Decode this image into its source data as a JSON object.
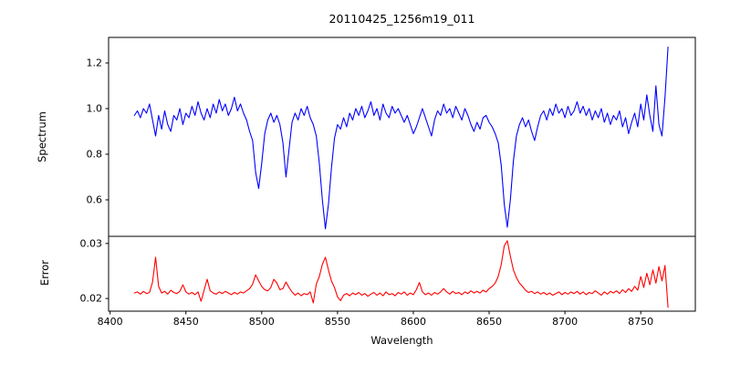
{
  "chart": {
    "title": "20110425_1256m19_011",
    "xlabel": "Wavelength",
    "background_color": "#ffffff",
    "spine_color": "#000000"
  },
  "chart_data": [
    {
      "type": "line",
      "name": "spectrum",
      "title": "20110425_1256m19_011",
      "ylabel": "Spectrum",
      "color": "#0000ff",
      "legend": null,
      "grid": false,
      "xlim": [
        8399,
        8786
      ],
      "ylim": [
        0.44,
        1.312
      ],
      "yticks": [
        0.6,
        0.8,
        1.0,
        1.2
      ],
      "ytick_labels": [
        "0.6",
        "0.8",
        "1.0",
        "1.2"
      ],
      "show_xtick_labels": false,
      "x_start": 8416,
      "x_step": 2,
      "y": [
        0.97,
        0.99,
        0.96,
        1.0,
        0.98,
        1.02,
        0.95,
        0.88,
        0.97,
        0.91,
        0.99,
        0.93,
        0.9,
        0.97,
        0.95,
        1.0,
        0.93,
        0.98,
        0.96,
        1.01,
        0.97,
        1.03,
        0.98,
        0.95,
        1.0,
        0.96,
        1.02,
        0.98,
        1.04,
        0.99,
        1.02,
        0.97,
        1.0,
        1.05,
        0.99,
        1.02,
        0.98,
        0.95,
        0.9,
        0.86,
        0.72,
        0.65,
        0.76,
        0.89,
        0.95,
        0.98,
        0.94,
        0.97,
        0.93,
        0.85,
        0.7,
        0.82,
        0.94,
        0.98,
        0.95,
        1.0,
        0.97,
        1.01,
        0.96,
        0.93,
        0.88,
        0.76,
        0.6,
        0.473,
        0.58,
        0.74,
        0.87,
        0.93,
        0.91,
        0.96,
        0.92,
        0.98,
        0.95,
        1.0,
        0.97,
        1.01,
        0.96,
        0.99,
        1.03,
        0.97,
        1.0,
        0.95,
        1.02,
        0.98,
        0.96,
        1.01,
        0.98,
        1.0,
        0.97,
        0.94,
        0.97,
        0.93,
        0.89,
        0.92,
        0.96,
        1.0,
        0.96,
        0.92,
        0.88,
        0.95,
        0.99,
        0.97,
        1.02,
        0.98,
        1.0,
        0.96,
        1.01,
        0.98,
        0.95,
        1.0,
        0.97,
        0.93,
        0.9,
        0.94,
        0.91,
        0.96,
        0.97,
        0.94,
        0.92,
        0.89,
        0.85,
        0.75,
        0.58,
        0.48,
        0.6,
        0.77,
        0.88,
        0.93,
        0.96,
        0.92,
        0.95,
        0.9,
        0.86,
        0.92,
        0.97,
        0.99,
        0.95,
        1.0,
        0.97,
        1.02,
        0.98,
        1.0,
        0.96,
        1.01,
        0.97,
        0.99,
        1.03,
        0.98,
        1.01,
        0.97,
        1.0,
        0.95,
        0.99,
        0.96,
        1.0,
        0.94,
        0.98,
        0.93,
        0.97,
        0.95,
        0.99,
        0.92,
        0.96,
        0.89,
        0.94,
        0.98,
        0.92,
        1.02,
        0.95,
        1.06,
        0.97,
        0.9,
        1.1,
        0.93,
        0.88,
        1.05,
        1.27
      ]
    },
    {
      "type": "line",
      "name": "error",
      "ylabel": "Error",
      "xlabel": "Wavelength",
      "color": "#ff0000",
      "legend": null,
      "grid": false,
      "xlim": [
        8399,
        8786
      ],
      "ylim": [
        0.0177,
        0.0313
      ],
      "yticks": [
        0.02,
        0.03
      ],
      "ytick_labels": [
        "0.02",
        "0.03"
      ],
      "xticks": [
        8400,
        8450,
        8500,
        8550,
        8600,
        8650,
        8700,
        8750
      ],
      "xtick_labels": [
        "8400",
        "8450",
        "8500",
        "8550",
        "8600",
        "8650",
        "8700",
        "8750"
      ],
      "show_xtick_labels": true,
      "x_start": 8416,
      "x_step": 2,
      "y": [
        0.021,
        0.0212,
        0.0208,
        0.0213,
        0.0209,
        0.0211,
        0.023,
        0.0275,
        0.0222,
        0.021,
        0.0213,
        0.0208,
        0.0215,
        0.0211,
        0.0209,
        0.0213,
        0.0225,
        0.0212,
        0.0208,
        0.0211,
        0.0207,
        0.0212,
        0.0195,
        0.0215,
        0.0235,
        0.0214,
        0.021,
        0.0208,
        0.0212,
        0.0209,
        0.0213,
        0.021,
        0.0207,
        0.0211,
        0.0208,
        0.0212,
        0.021,
        0.0214,
        0.0218,
        0.0226,
        0.0243,
        0.0232,
        0.0222,
        0.0216,
        0.0214,
        0.022,
        0.0235,
        0.0228,
        0.0216,
        0.0218,
        0.023,
        0.022,
        0.0212,
        0.0206,
        0.021,
        0.0205,
        0.0209,
        0.0207,
        0.0212,
        0.0192,
        0.0226,
        0.024,
        0.0262,
        0.0275,
        0.0252,
        0.0232,
        0.022,
        0.0203,
        0.0196,
        0.0206,
        0.0209,
        0.0205,
        0.021,
        0.0207,
        0.0211,
        0.0206,
        0.0209,
        0.0204,
        0.0208,
        0.0211,
        0.0206,
        0.021,
        0.0205,
        0.0212,
        0.0207,
        0.0209,
        0.0205,
        0.0211,
        0.0208,
        0.0212,
        0.0206,
        0.021,
        0.0207,
        0.0216,
        0.0229,
        0.0212,
        0.0207,
        0.021,
        0.0206,
        0.0211,
        0.0208,
        0.0212,
        0.0218,
        0.0212,
        0.0208,
        0.0213,
        0.0209,
        0.0211,
        0.0207,
        0.0212,
        0.0209,
        0.0214,
        0.021,
        0.0213,
        0.021,
        0.0215,
        0.0212,
        0.0218,
        0.0222,
        0.0228,
        0.024,
        0.0262,
        0.0296,
        0.0305,
        0.0277,
        0.0252,
        0.0238,
        0.0228,
        0.0222,
        0.0215,
        0.0211,
        0.0213,
        0.0209,
        0.0212,
        0.0208,
        0.0211,
        0.0207,
        0.021,
        0.0206,
        0.0209,
        0.0212,
        0.0207,
        0.0211,
        0.0208,
        0.0212,
        0.0209,
        0.0213,
        0.0208,
        0.0212,
        0.0207,
        0.0211,
        0.0209,
        0.0214,
        0.021,
        0.0206,
        0.0212,
        0.0208,
        0.0213,
        0.021,
        0.0214,
        0.0209,
        0.0216,
        0.0211,
        0.0218,
        0.0213,
        0.0222,
        0.0215,
        0.024,
        0.022,
        0.0246,
        0.0225,
        0.0252,
        0.0228,
        0.0258,
        0.0232,
        0.026,
        0.0184
      ]
    }
  ]
}
